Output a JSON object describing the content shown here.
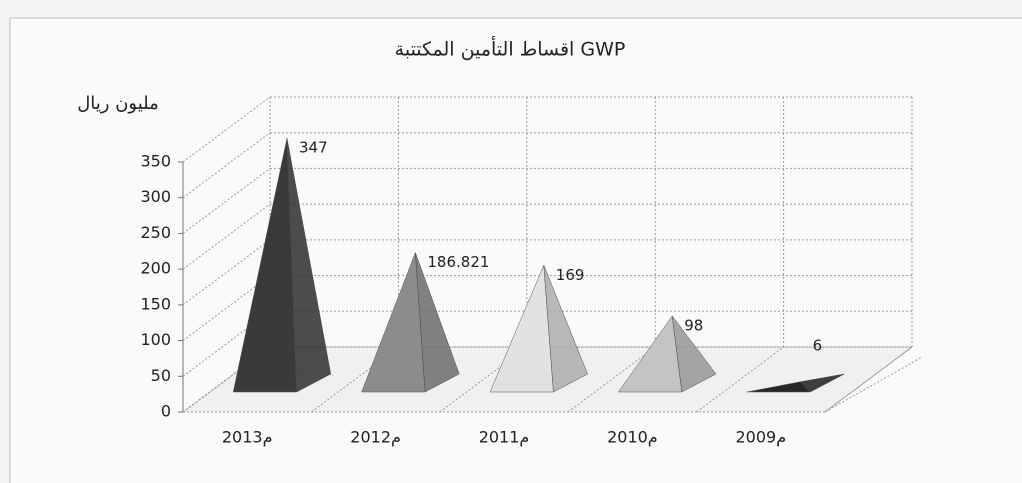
{
  "chart_data": {
    "type": "bar",
    "title": "اقساط التأمين المكتتبة GWP",
    "y_label": "مليون ريال",
    "categories": [
      "2013م",
      "2012م",
      "2011م",
      "2010م",
      "2009م"
    ],
    "values": [
      347,
      186.821,
      169,
      98,
      6
    ],
    "colors": [
      "#3a3a3a",
      "#8c8c8c",
      "#e2e2e2",
      "#c4c4c4",
      "#262626"
    ],
    "ylim": [
      0,
      350
    ],
    "yticks": [
      0,
      50,
      100,
      150,
      200,
      250,
      300,
      350
    ],
    "grid": true
  }
}
